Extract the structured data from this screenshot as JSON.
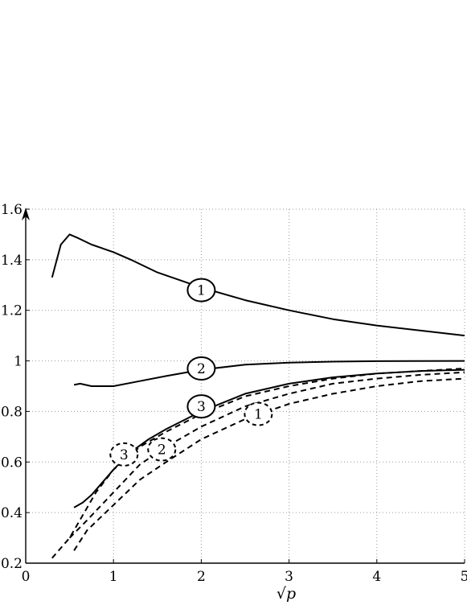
{
  "chart_data": {
    "type": "line",
    "xlabel": "√p",
    "ylabel": "",
    "xlim": [
      0,
      5
    ],
    "ylim": [
      0.2,
      1.6
    ],
    "grid": true,
    "x_ticks": [
      "0",
      "1",
      "2",
      "3",
      "4",
      "5"
    ],
    "y_ticks": [
      "0.2",
      "0.4",
      "0.6",
      "0.8",
      "1",
      "1.2",
      "1.4",
      "1.6"
    ],
    "series": [
      {
        "style": "solid",
        "marker_label": "1",
        "marker_at": [
          2.0,
          1.28
        ],
        "points": [
          [
            0.3,
            1.33
          ],
          [
            0.4,
            1.46
          ],
          [
            0.5,
            1.5
          ],
          [
            0.6,
            1.485
          ],
          [
            0.75,
            1.46
          ],
          [
            1.0,
            1.43
          ],
          [
            1.2,
            1.4
          ],
          [
            1.5,
            1.35
          ],
          [
            2.0,
            1.29
          ],
          [
            2.5,
            1.24
          ],
          [
            3.0,
            1.2
          ],
          [
            3.5,
            1.165
          ],
          [
            4.0,
            1.14
          ],
          [
            4.5,
            1.12
          ],
          [
            5.0,
            1.1
          ]
        ]
      },
      {
        "style": "solid",
        "marker_label": "2",
        "marker_at": [
          2.0,
          0.97
        ],
        "points": [
          [
            0.55,
            0.905
          ],
          [
            0.62,
            0.91
          ],
          [
            0.75,
            0.9
          ],
          [
            1.0,
            0.9
          ],
          [
            1.3,
            0.92
          ],
          [
            1.6,
            0.94
          ],
          [
            2.0,
            0.965
          ],
          [
            2.5,
            0.985
          ],
          [
            3.0,
            0.993
          ],
          [
            3.5,
            0.997
          ],
          [
            4.0,
            0.999
          ],
          [
            5.0,
            1.0
          ]
        ]
      },
      {
        "style": "solid",
        "marker_label": "3",
        "marker_at": [
          2.0,
          0.82
        ],
        "points": [
          [
            0.55,
            0.42
          ],
          [
            0.65,
            0.44
          ],
          [
            0.75,
            0.47
          ],
          [
            0.9,
            0.53
          ],
          [
            1.0,
            0.57
          ],
          [
            1.2,
            0.64
          ],
          [
            1.4,
            0.69
          ],
          [
            1.6,
            0.73
          ],
          [
            2.0,
            0.8
          ],
          [
            2.5,
            0.87
          ],
          [
            3.0,
            0.91
          ],
          [
            3.5,
            0.935
          ],
          [
            4.0,
            0.95
          ],
          [
            4.5,
            0.96
          ],
          [
            5.0,
            0.965
          ]
        ]
      },
      {
        "style": "dashed",
        "marker_label": "1",
        "marker_at": [
          2.65,
          0.79
        ],
        "points": [
          [
            0.55,
            0.25
          ],
          [
            0.7,
            0.33
          ],
          [
            1.0,
            0.43
          ],
          [
            1.3,
            0.53
          ],
          [
            1.6,
            0.6
          ],
          [
            2.0,
            0.69
          ],
          [
            2.5,
            0.77
          ],
          [
            3.0,
            0.83
          ],
          [
            3.5,
            0.87
          ],
          [
            4.0,
            0.9
          ],
          [
            4.5,
            0.92
          ],
          [
            5.0,
            0.93
          ]
        ]
      },
      {
        "style": "dashed",
        "marker_label": "2",
        "marker_at": [
          1.55,
          0.65
        ],
        "points": [
          [
            0.5,
            0.3
          ],
          [
            0.7,
            0.37
          ],
          [
            1.0,
            0.48
          ],
          [
            1.3,
            0.59
          ],
          [
            1.6,
            0.66
          ],
          [
            2.0,
            0.74
          ],
          [
            2.5,
            0.82
          ],
          [
            3.0,
            0.87
          ],
          [
            3.5,
            0.91
          ],
          [
            4.0,
            0.93
          ],
          [
            4.5,
            0.945
          ],
          [
            5.0,
            0.955
          ]
        ]
      },
      {
        "style": "dashed",
        "marker_label": "3",
        "marker_at": [
          1.12,
          0.63
        ],
        "points": [
          [
            0.3,
            0.22
          ],
          [
            0.5,
            0.3
          ],
          [
            0.8,
            0.48
          ],
          [
            1.0,
            0.57
          ],
          [
            1.3,
            0.66
          ],
          [
            1.6,
            0.72
          ],
          [
            2.0,
            0.79
          ],
          [
            2.5,
            0.86
          ],
          [
            3.0,
            0.9
          ],
          [
            3.5,
            0.93
          ],
          [
            4.0,
            0.95
          ],
          [
            4.5,
            0.96
          ],
          [
            5.0,
            0.97
          ]
        ]
      }
    ]
  }
}
